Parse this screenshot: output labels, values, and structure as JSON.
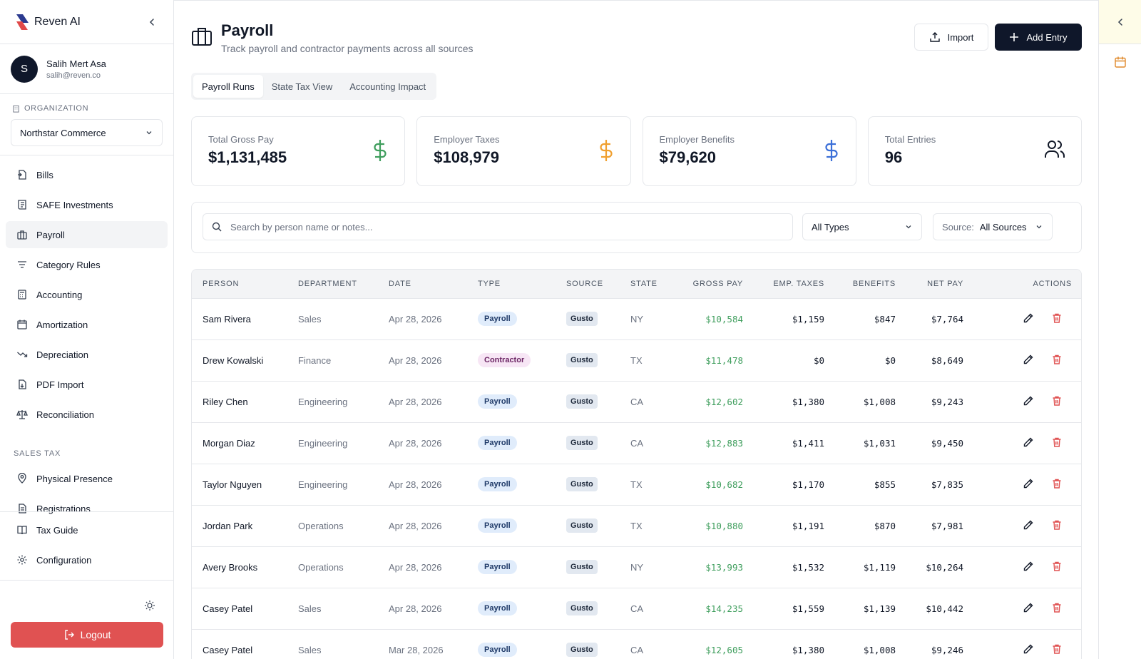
{
  "app": {
    "name": "Reven AI"
  },
  "user": {
    "initial": "S",
    "name": "Salih Mert Asa",
    "email": "salih@reven.co"
  },
  "org": {
    "label": "ORGANIZATION",
    "selected": "Northstar Commerce"
  },
  "nav": [
    {
      "label": "Bills",
      "icon": "bill-icon"
    },
    {
      "label": "SAFE Investments",
      "icon": "receipt-icon"
    },
    {
      "label": "Payroll",
      "icon": "briefcase-icon",
      "active": true
    },
    {
      "label": "Category Rules",
      "icon": "filter-icon"
    },
    {
      "label": "Accounting",
      "icon": "calculator-icon"
    },
    {
      "label": "Amortization",
      "icon": "calendar-icon"
    },
    {
      "label": "Depreciation",
      "icon": "trending-down-icon"
    },
    {
      "label": "PDF Import",
      "icon": "file-import-icon"
    },
    {
      "label": "Reconciliation",
      "icon": "scale-icon"
    }
  ],
  "sales_tax": {
    "label": "SALES TAX",
    "items": [
      {
        "label": "Physical Presence",
        "icon": "map-pin-icon"
      },
      {
        "label": "Registrations",
        "icon": "document-icon"
      }
    ]
  },
  "lower_nav": [
    {
      "label": "Tax Guide",
      "icon": "book-icon"
    },
    {
      "label": "Configuration",
      "icon": "gear-icon"
    }
  ],
  "logout_label": "Logout",
  "page": {
    "title": "Payroll",
    "subtitle": "Track payroll and contractor payments across all sources",
    "import_label": "Import",
    "add_label": "Add Entry",
    "tabs": [
      "Payroll Runs",
      "State Tax View",
      "Accounting Impact"
    ]
  },
  "stats": [
    {
      "label": "Total Gross Pay",
      "value": "$1,131,485",
      "icon": "dollar-icon",
      "color": "#3f9e5d"
    },
    {
      "label": "Employer Taxes",
      "value": "$108,979",
      "icon": "dollar-icon",
      "color": "#f0a030"
    },
    {
      "label": "Employer Benefits",
      "value": "$79,620",
      "icon": "dollar-icon",
      "color": "#3b6fd8"
    },
    {
      "label": "Total Entries",
      "value": "96",
      "icon": "users-icon",
      "color": "#111827"
    }
  ],
  "filters": {
    "search_placeholder": "Search by person name or notes...",
    "type_selected": "All Types",
    "source_label": "Source:",
    "source_selected": "All Sources"
  },
  "table": {
    "headers": [
      "PERSON",
      "DEPARTMENT",
      "DATE",
      "TYPE",
      "SOURCE",
      "STATE",
      "GROSS PAY",
      "EMP. TAXES",
      "BENEFITS",
      "NET PAY",
      "ACTIONS"
    ],
    "rows": [
      {
        "person": "Sam Rivera",
        "department": "Sales",
        "date": "Apr 28, 2026",
        "type": "Payroll",
        "source": "Gusto",
        "state": "NY",
        "gross": "$10,584",
        "taxes": "$1,159",
        "benefits": "$847",
        "net": "$7,764"
      },
      {
        "person": "Drew Kowalski",
        "department": "Finance",
        "date": "Apr 28, 2026",
        "type": "Contractor",
        "source": "Gusto",
        "state": "TX",
        "gross": "$11,478",
        "taxes": "$0",
        "benefits": "$0",
        "net": "$8,649"
      },
      {
        "person": "Riley Chen",
        "department": "Engineering",
        "date": "Apr 28, 2026",
        "type": "Payroll",
        "source": "Gusto",
        "state": "CA",
        "gross": "$12,602",
        "taxes": "$1,380",
        "benefits": "$1,008",
        "net": "$9,243"
      },
      {
        "person": "Morgan Diaz",
        "department": "Engineering",
        "date": "Apr 28, 2026",
        "type": "Payroll",
        "source": "Gusto",
        "state": "CA",
        "gross": "$12,883",
        "taxes": "$1,411",
        "benefits": "$1,031",
        "net": "$9,450"
      },
      {
        "person": "Taylor Nguyen",
        "department": "Engineering",
        "date": "Apr 28, 2026",
        "type": "Payroll",
        "source": "Gusto",
        "state": "TX",
        "gross": "$10,682",
        "taxes": "$1,170",
        "benefits": "$855",
        "net": "$7,835"
      },
      {
        "person": "Jordan Park",
        "department": "Operations",
        "date": "Apr 28, 2026",
        "type": "Payroll",
        "source": "Gusto",
        "state": "TX",
        "gross": "$10,880",
        "taxes": "$1,191",
        "benefits": "$870",
        "net": "$7,981"
      },
      {
        "person": "Avery Brooks",
        "department": "Operations",
        "date": "Apr 28, 2026",
        "type": "Payroll",
        "source": "Gusto",
        "state": "NY",
        "gross": "$13,993",
        "taxes": "$1,532",
        "benefits": "$1,119",
        "net": "$10,264"
      },
      {
        "person": "Casey Patel",
        "department": "Sales",
        "date": "Apr 28, 2026",
        "type": "Payroll",
        "source": "Gusto",
        "state": "CA",
        "gross": "$14,235",
        "taxes": "$1,559",
        "benefits": "$1,139",
        "net": "$10,442"
      },
      {
        "person": "Casey Patel",
        "department": "Sales",
        "date": "Mar 28, 2026",
        "type": "Payroll",
        "source": "Gusto",
        "state": "CA",
        "gross": "$12,605",
        "taxes": "$1,380",
        "benefits": "$1,008",
        "net": "$9,246"
      }
    ]
  },
  "colors": {
    "accent": "#0f172a",
    "logout": "#e05252",
    "gross_pay": "#3f9e5d",
    "delete": "#e05252"
  }
}
